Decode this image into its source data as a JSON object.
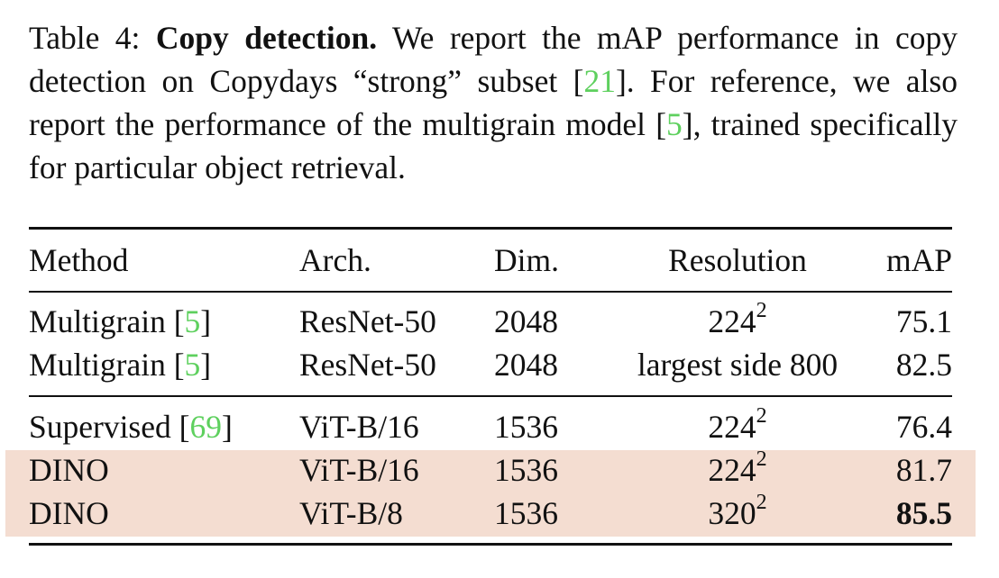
{
  "caption": {
    "label": "Table 4:",
    "title": "Copy detection.",
    "text_1": "We report the mAP performance in copy detection on Copydays “strong” subset [",
    "cite_1": "21",
    "text_2": "]. For reference, we also report the performance of the multigrain model [",
    "cite_2": "5",
    "text_3": "], trained specifically for particular object retrieval."
  },
  "table": {
    "headers": [
      "Method",
      "Arch.",
      "Dim.",
      "Resolution",
      "mAP"
    ],
    "rows": [
      {
        "method": "Multigrain [",
        "cite": "5",
        "close": "]",
        "arch": "ResNet-50",
        "dim": "2048",
        "res_base": "224",
        "res_sup": "2",
        "map": "75.1"
      },
      {
        "method": "Multigrain [",
        "cite": "5",
        "close": "]",
        "arch": "ResNet-50",
        "dim": "2048",
        "res_base": "largest side 800",
        "res_sup": "",
        "map": "82.5"
      },
      {
        "method": "Supervised [",
        "cite": "69",
        "close": "]",
        "arch": "ViT-B/16",
        "dim": "1536",
        "res_base": "224",
        "res_sup": "2",
        "map": "76.4"
      },
      {
        "method": "DINO",
        "cite": "",
        "close": "",
        "arch": "ViT-B/16",
        "dim": "1536",
        "res_base": "224",
        "res_sup": "2",
        "map": "81.7"
      },
      {
        "method": "DINO",
        "cite": "",
        "close": "",
        "arch": "ViT-B/8",
        "dim": "1536",
        "res_base": "320",
        "res_sup": "2",
        "map": "85.5"
      }
    ],
    "highlight_color": "#f4ddd1",
    "cite_color": "#5ed05e"
  }
}
